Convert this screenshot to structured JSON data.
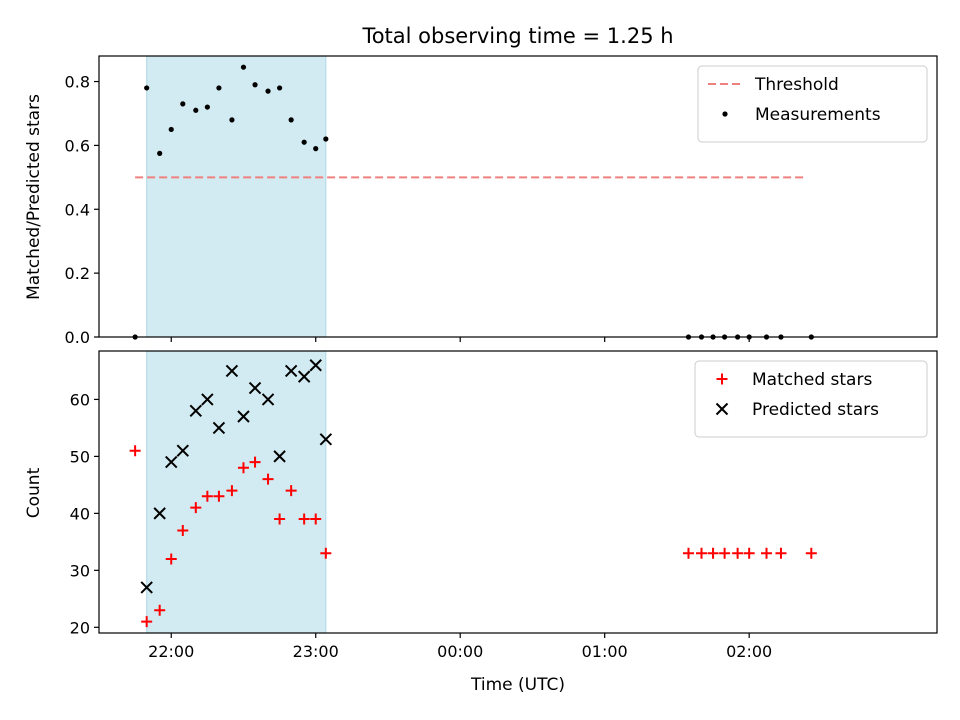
{
  "chart_data": {
    "title": "Total observing time = 1.25 h",
    "xlabel": "Time (UTC)",
    "x_ticks": [
      "22:00",
      "23:00",
      "00:00",
      "01:00",
      "02:00"
    ],
    "x_tick_hours": [
      22,
      23,
      24,
      25,
      26
    ],
    "xlim_hours": [
      21.5,
      27.3
    ],
    "shaded_interval_hours": [
      21.83,
      23.07
    ],
    "shade_color": "#add8e6",
    "panels": [
      {
        "type": "scatter",
        "ylabel": "Matched/Predicted stars",
        "ylim": [
          0,
          0.88
        ],
        "y_ticks": [
          "0.0",
          "0.2",
          "0.4",
          "0.6",
          "0.8"
        ],
        "y_tick_values": [
          0,
          0.2,
          0.4,
          0.6,
          0.8
        ],
        "legend_position": "upper-right",
        "threshold": {
          "name": "Threshold",
          "value": 0.5,
          "x_range": [
            21.75,
            26.4
          ],
          "color": "#f08080",
          "style": "dashed"
        },
        "series": [
          {
            "name": "Measurements",
            "marker": "dot",
            "color": "#000000",
            "x": [
              21.75,
              21.83,
              21.92,
              22.0,
              22.08,
              22.17,
              22.25,
              22.33,
              22.42,
              22.5,
              22.58,
              22.67,
              22.75,
              22.83,
              22.92,
              23.0,
              23.07,
              25.58,
              25.67,
              25.75,
              25.83,
              25.92,
              26.0,
              26.12,
              26.22,
              26.43
            ],
            "y": [
              0.0,
              0.78,
              0.575,
              0.65,
              0.73,
              0.71,
              0.72,
              0.78,
              0.68,
              0.845,
              0.79,
              0.77,
              0.78,
              0.68,
              0.61,
              0.59,
              0.62,
              0.0,
              0.0,
              0.0,
              0.0,
              0.0,
              0.0,
              0.0,
              0.0,
              0.0
            ]
          }
        ]
      },
      {
        "type": "scatter",
        "ylabel": "Count",
        "ylim": [
          19,
          68.5
        ],
        "y_ticks": [
          "20",
          "30",
          "40",
          "50",
          "60"
        ],
        "y_tick_values": [
          20,
          30,
          40,
          50,
          60
        ],
        "legend_position": "upper-right",
        "series": [
          {
            "name": "Matched stars",
            "marker": "plus",
            "color": "#ff0000",
            "x": [
              21.75,
              21.83,
              21.92,
              22.0,
              22.08,
              22.17,
              22.25,
              22.33,
              22.42,
              22.5,
              22.58,
              22.67,
              22.75,
              22.83,
              22.92,
              23.0,
              23.07,
              25.58,
              25.67,
              25.75,
              25.83,
              25.92,
              26.0,
              26.12,
              26.22,
              26.43
            ],
            "y": [
              51,
              21,
              23,
              32,
              37,
              41,
              43,
              43,
              44,
              48,
              49,
              46,
              39,
              44,
              39,
              39,
              33,
              33,
              33,
              33,
              33,
              33,
              33,
              33,
              33,
              33
            ]
          },
          {
            "name": "Predicted stars",
            "marker": "x",
            "color": "#000000",
            "x": [
              21.83,
              21.92,
              22.0,
              22.08,
              22.17,
              22.25,
              22.33,
              22.42,
              22.5,
              22.58,
              22.67,
              22.75,
              22.83,
              22.92,
              23.0,
              23.07
            ],
            "y": [
              27,
              40,
              49,
              51,
              58,
              60,
              55,
              65,
              57,
              62,
              60,
              50,
              65,
              64,
              66,
              53
            ]
          }
        ]
      }
    ]
  }
}
